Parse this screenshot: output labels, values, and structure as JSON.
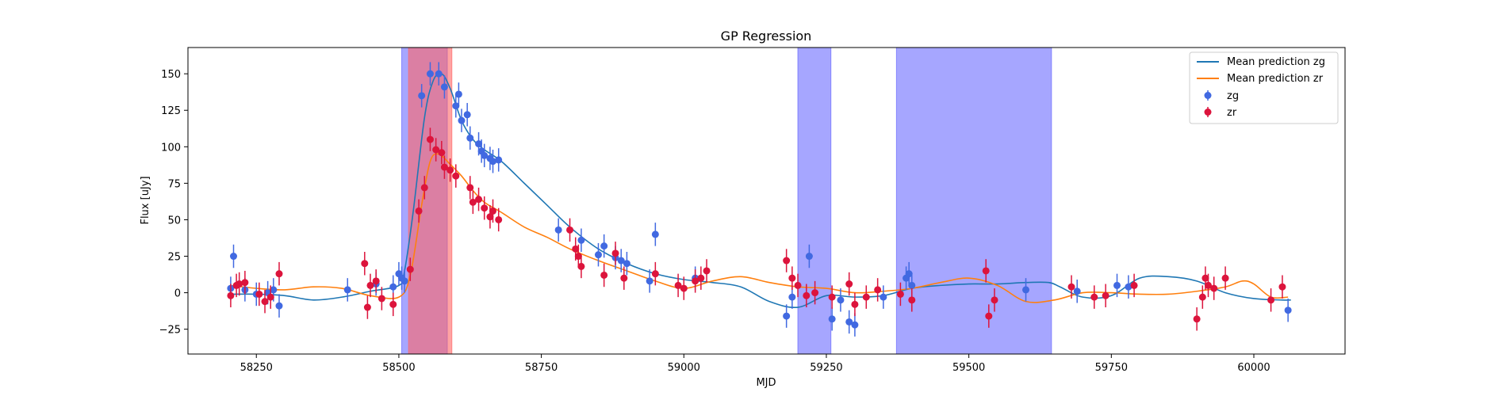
{
  "chart_data": {
    "type": "scatter",
    "title": "GP Regression",
    "xlabel": "MJD",
    "ylabel": "Flux [uJy]",
    "xlim": [
      58130,
      60160
    ],
    "ylim": [
      -42,
      168
    ],
    "xticks": [
      58250,
      58500,
      58750,
      59000,
      59250,
      59500,
      59750,
      60000
    ],
    "yticks": [
      -25,
      0,
      25,
      50,
      75,
      100,
      125,
      150
    ],
    "grid": false,
    "legend_position": "top-right",
    "colors": {
      "mean_zg": "#1f77b4",
      "mean_zr": "#ff7f0e",
      "zg_points": "#4169e1",
      "zr_points": "#dc143c",
      "blue_band": "#6666ff",
      "red_band": "#ff6666"
    },
    "shaded_regions": [
      {
        "band": "zg",
        "x0": 58505,
        "x1": 58585
      },
      {
        "band": "zg",
        "x0": 59200,
        "x1": 59258
      },
      {
        "band": "zg",
        "x0": 59373,
        "x1": 59645
      },
      {
        "band": "zr",
        "x0": 58517,
        "x1": 58593
      }
    ],
    "series": [
      {
        "name": "Mean prediction zg",
        "kind": "line",
        "x": [
          58205,
          58250,
          58300,
          58350,
          58400,
          58450,
          58500,
          58510,
          58525,
          58545,
          58560,
          58575,
          58590,
          58610,
          58630,
          58650,
          58680,
          58720,
          58760,
          58800,
          58850,
          58900,
          58950,
          59000,
          59050,
          59100,
          59150,
          59200,
          59250,
          59300,
          59350,
          59400,
          59450,
          59500,
          59550,
          59600,
          59640,
          59660,
          59700,
          59750,
          59800,
          59850,
          59900,
          59950,
          60000,
          60050,
          60065
        ],
        "values": [
          -1,
          -1,
          -2,
          -5,
          -3,
          1,
          5,
          15,
          55,
          120,
          145,
          150,
          140,
          118,
          105,
          98,
          90,
          75,
          60,
          45,
          30,
          20,
          13,
          9,
          7,
          4,
          -6,
          -10,
          -2,
          -3,
          -2,
          3,
          5,
          6,
          6,
          7,
          7,
          4,
          -3,
          -2,
          10,
          11,
          8,
          0,
          -4,
          -5,
          -5
        ]
      },
      {
        "name": "Mean prediction zr",
        "kind": "line",
        "x": [
          58205,
          58250,
          58300,
          58350,
          58400,
          58450,
          58500,
          58520,
          58540,
          58555,
          58570,
          58590,
          58610,
          58630,
          58650,
          58680,
          58720,
          58760,
          58800,
          58850,
          58900,
          58950,
          59000,
          59050,
          59100,
          59150,
          59200,
          59250,
          59300,
          59350,
          59400,
          59450,
          59500,
          59550,
          59600,
          59650,
          59700,
          59750,
          59800,
          59850,
          59900,
          59950,
          59980,
          60000,
          60030,
          60060
        ],
        "values": [
          5,
          3,
          2,
          4,
          3,
          -2,
          -3,
          12,
          60,
          90,
          95,
          88,
          80,
          70,
          62,
          55,
          45,
          38,
          30,
          22,
          15,
          8,
          3,
          8,
          11,
          7,
          4,
          3,
          0,
          1,
          3,
          7,
          10,
          5,
          -6,
          -5,
          0,
          0,
          -1,
          -1,
          1,
          4,
          8,
          6,
          -3,
          -3
        ]
      },
      {
        "name": "zg",
        "kind": "scatter",
        "x": [
          58205,
          58210,
          58230,
          58250,
          58270,
          58280,
          58290,
          58410,
          58460,
          58490,
          58500,
          58505,
          58510,
          58540,
          58555,
          58570,
          58580,
          58600,
          58605,
          58610,
          58620,
          58625,
          58640,
          58645,
          58650,
          58660,
          58665,
          58675,
          58780,
          58820,
          58850,
          58860,
          58880,
          58890,
          58900,
          58940,
          58950,
          59020,
          59180,
          59190,
          59220,
          59260,
          59275,
          59290,
          59300,
          59350,
          59390,
          59395,
          59400,
          59600,
          59690,
          59760,
          59780,
          60060
        ],
        "values": [
          3,
          25,
          2,
          -1,
          0,
          2,
          -9,
          2,
          6,
          4,
          13,
          10,
          8,
          135,
          150,
          150,
          141,
          128,
          136,
          118,
          122,
          106,
          102,
          97,
          94,
          92,
          90,
          91,
          43,
          36,
          26,
          32,
          24,
          22,
          20,
          8,
          40,
          10,
          -16,
          -3,
          25,
          -18,
          -5,
          -20,
          -22,
          -3,
          10,
          13,
          5,
          2,
          1,
          5,
          4,
          -12
        ]
      },
      {
        "name": "zr",
        "kind": "scatter",
        "x": [
          58205,
          58215,
          58220,
          58230,
          58255,
          58265,
          58275,
          58290,
          58440,
          58445,
          58450,
          58460,
          58470,
          58490,
          58520,
          58535,
          58545,
          58555,
          58565,
          58575,
          58580,
          58590,
          58600,
          58625,
          58630,
          58640,
          58650,
          58660,
          58665,
          58675,
          58800,
          58810,
          58815,
          58820,
          58860,
          58880,
          58895,
          58950,
          58990,
          59000,
          59020,
          59030,
          59040,
          59180,
          59190,
          59200,
          59215,
          59230,
          59260,
          59290,
          59300,
          59320,
          59340,
          59380,
          59400,
          59530,
          59535,
          59545,
          59680,
          59720,
          59740,
          59790,
          59900,
          59910,
          59915,
          59920,
          59930,
          59950,
          60030,
          60050
        ],
        "values": [
          -2,
          5,
          6,
          7,
          -1,
          -6,
          -3,
          13,
          20,
          -10,
          5,
          8,
          -4,
          -8,
          16,
          56,
          72,
          105,
          98,
          96,
          86,
          84,
          80,
          72,
          62,
          64,
          58,
          52,
          56,
          50,
          43,
          30,
          25,
          18,
          12,
          27,
          10,
          13,
          5,
          3,
          8,
          10,
          15,
          22,
          10,
          5,
          -2,
          0,
          -3,
          6,
          -8,
          -3,
          2,
          -1,
          -5,
          15,
          -16,
          -5,
          4,
          -3,
          -2,
          5,
          -18,
          -3,
          10,
          5,
          3,
          10,
          -5,
          4
        ]
      }
    ]
  }
}
